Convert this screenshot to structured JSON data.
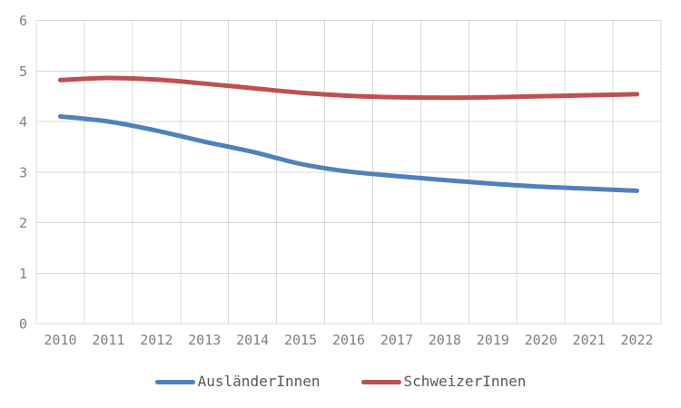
{
  "chart_data": {
    "type": "line",
    "title": "",
    "xlabel": "",
    "ylabel": "",
    "categories": [
      "2010",
      "2011",
      "2012",
      "2013",
      "2014",
      "2015",
      "2016",
      "2017",
      "2018",
      "2019",
      "2020",
      "2021",
      "2022"
    ],
    "series": [
      {
        "name": "AusländerInnen",
        "color": "#4F81BD",
        "values": [
          4.1,
          4.0,
          3.82,
          3.6,
          3.4,
          3.16,
          3.01,
          2.92,
          2.84,
          2.77,
          2.71,
          2.67,
          2.63
        ]
      },
      {
        "name": "SchweizerInnen",
        "color": "#C0504D",
        "values": [
          4.82,
          4.86,
          4.83,
          4.75,
          4.66,
          4.57,
          4.51,
          4.48,
          4.47,
          4.48,
          4.5,
          4.52,
          4.54
        ]
      }
    ],
    "ylim": [
      0,
      6
    ],
    "y_ticks": [
      "0",
      "1",
      "2",
      "3",
      "4",
      "5",
      "6"
    ],
    "grid": true,
    "legend_position": "bottom",
    "line_style": "smooth"
  },
  "colors": {
    "background": "#FFFFFF",
    "gridline": "#D9D9D9",
    "axis_label": "#808080",
    "legend_label": "#595959"
  }
}
